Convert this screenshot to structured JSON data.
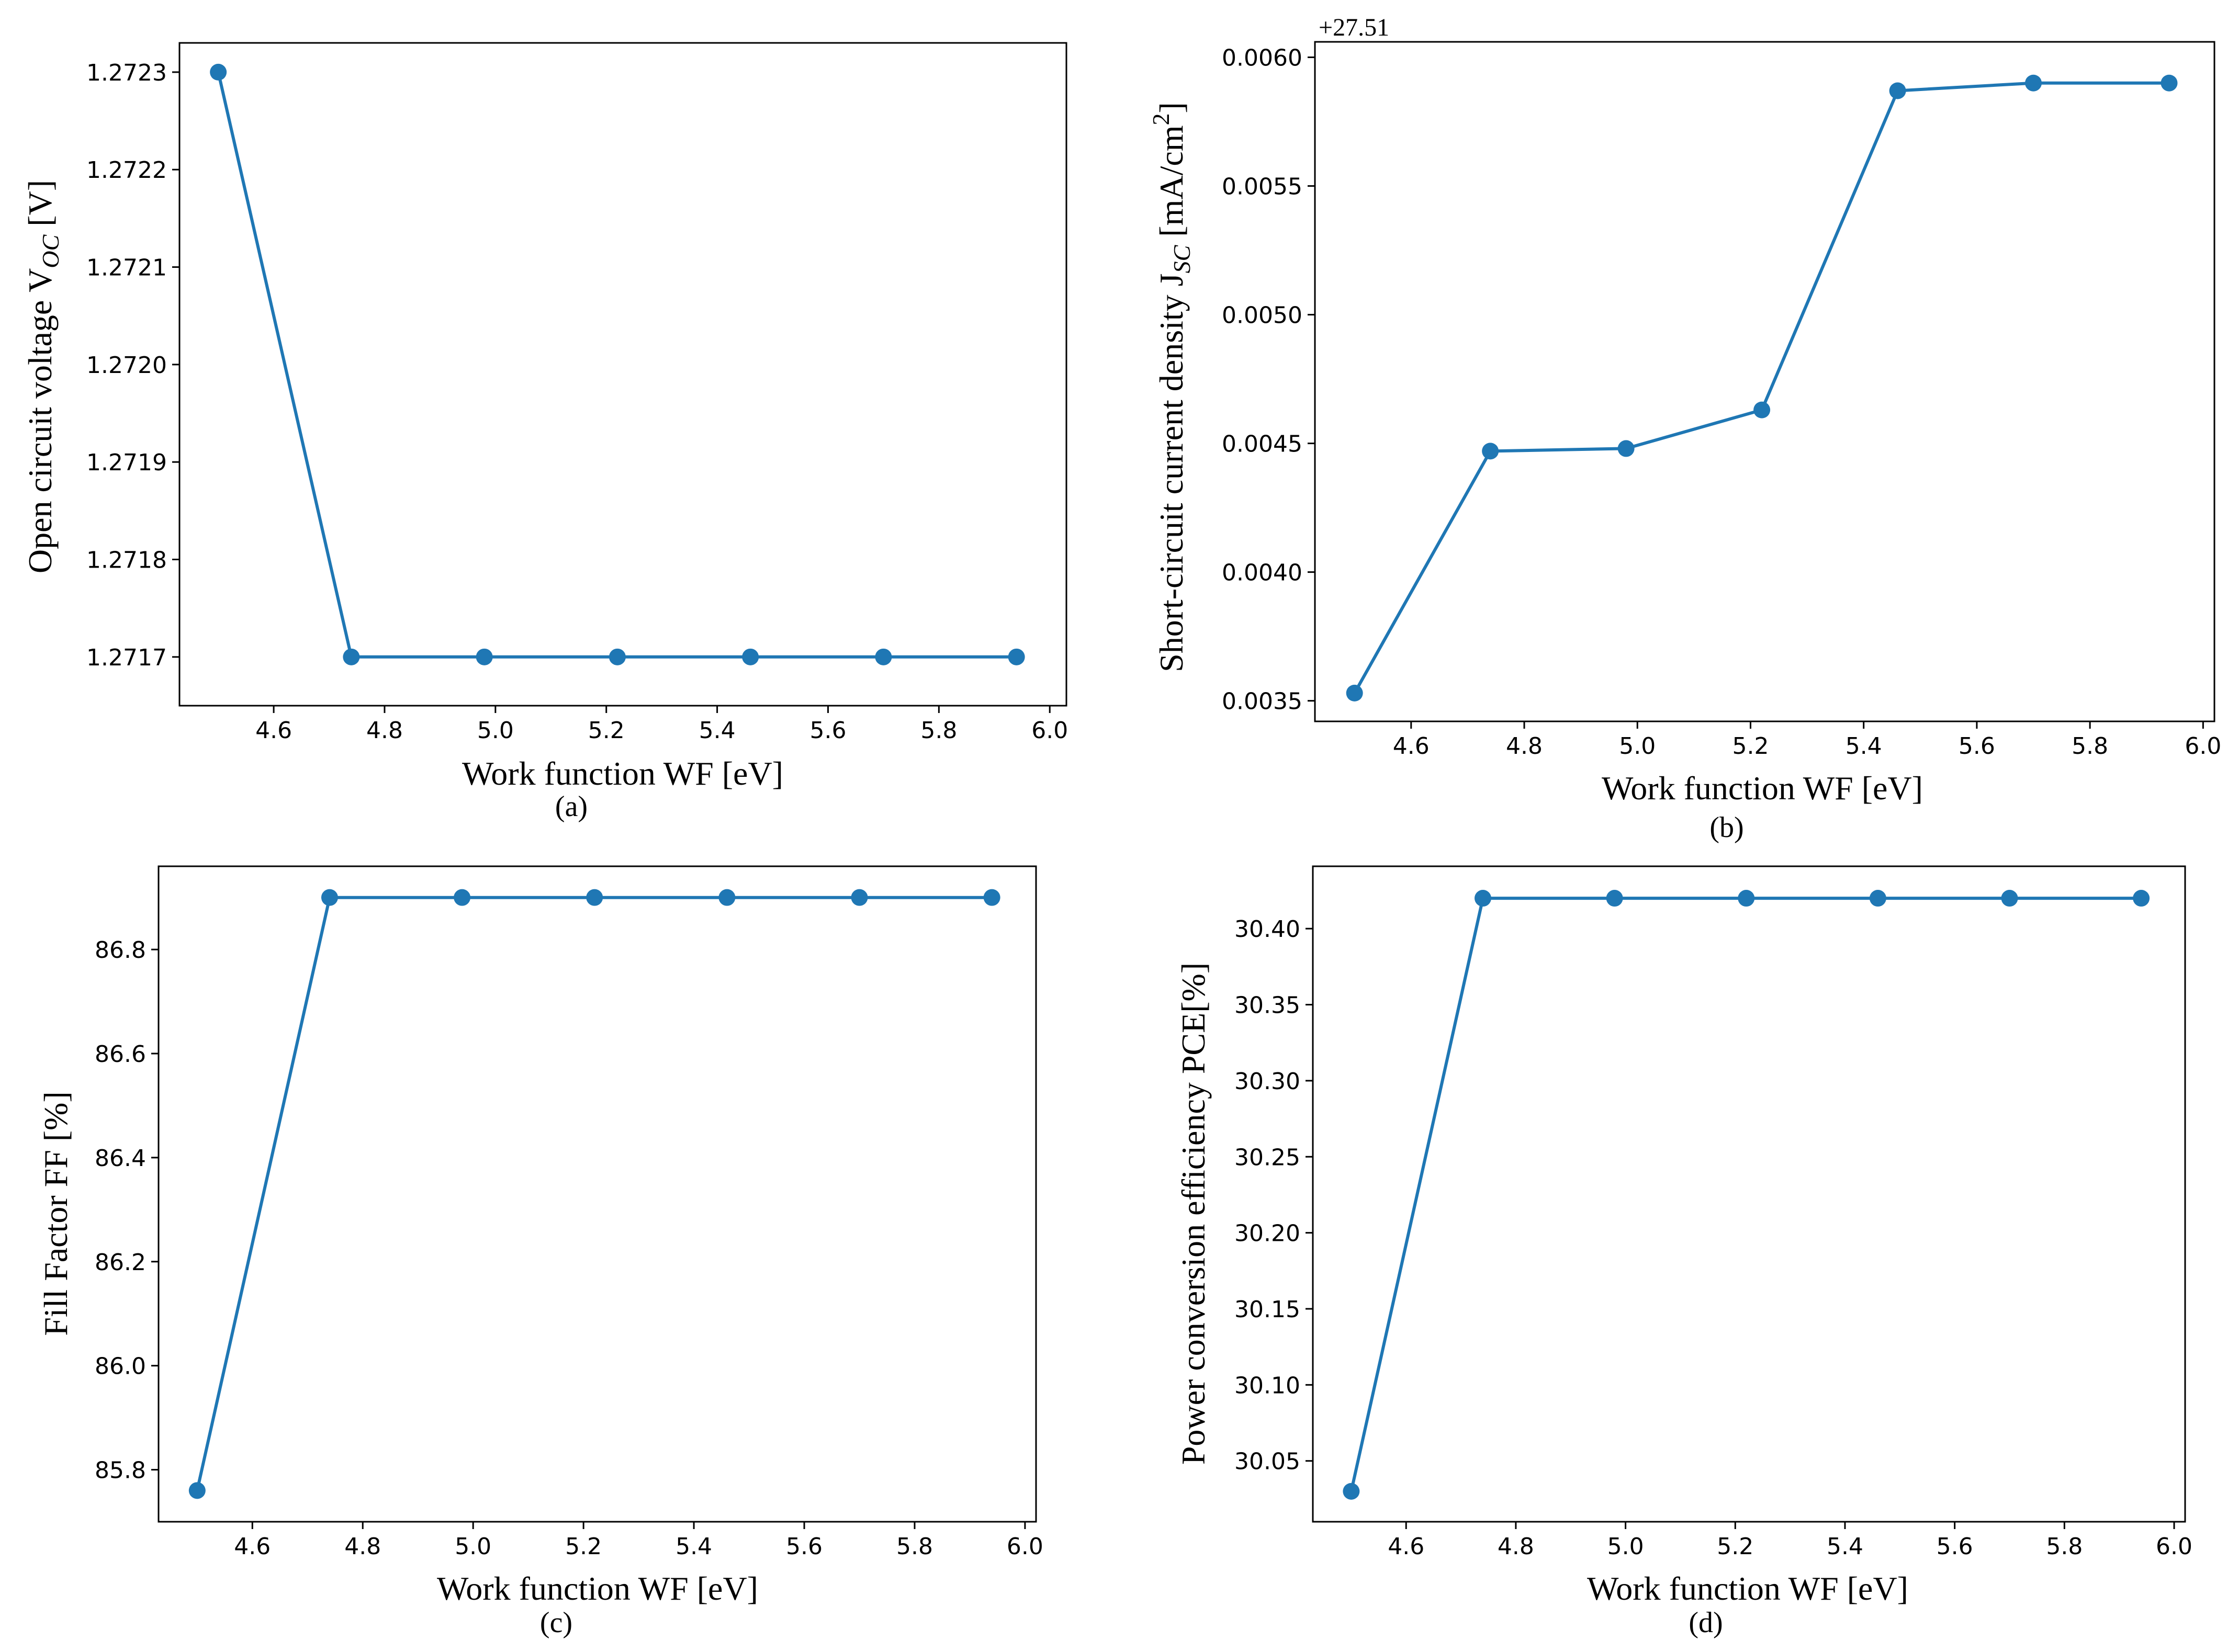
{
  "chart_data": [
    {
      "type": "line",
      "caption": "(a)",
      "xlabel": "Work function WF [eV]",
      "ylabel": "Open circuit voltage V",
      "ylabel_sub": "OC",
      "ylabel_tail": " [V]",
      "xlim": [
        4.43,
        6.03
      ],
      "ylim": [
        1.27165,
        1.27233
      ],
      "xticks": [
        "4.6",
        "4.8",
        "5.0",
        "5.2",
        "5.4",
        "5.6",
        "5.8",
        "6.0"
      ],
      "yticks": [
        "1.2717",
        "1.2718",
        "1.2719",
        "1.2720",
        "1.2721",
        "1.2722",
        "1.2723"
      ],
      "series": [
        {
          "name": "Voc",
          "color": "#1f77b4",
          "x": [
            4.5,
            4.74,
            4.98,
            5.22,
            5.46,
            5.7,
            5.94
          ],
          "y": [
            1.2723,
            1.2717,
            1.2717,
            1.2717,
            1.2717,
            1.2717,
            1.2717
          ]
        }
      ]
    },
    {
      "type": "line",
      "caption": "(b)",
      "offset_text": "+27.51",
      "xlabel": "Work function WF [eV]",
      "ylabel": "Short-circuit current density J",
      "ylabel_sub": "SC",
      "ylabel_tail": " [mA/cm",
      "ylabel_sup": "2",
      "ylabel_end": "]",
      "xlim": [
        4.43,
        6.02
      ],
      "ylim": [
        0.00342,
        0.00606
      ],
      "xticks": [
        "4.6",
        "4.8",
        "5.0",
        "5.2",
        "5.4",
        "5.6",
        "5.8",
        "6.0"
      ],
      "yticks": [
        "0.0035",
        "0.0040",
        "0.0045",
        "0.0050",
        "0.0055",
        "0.0060"
      ],
      "series": [
        {
          "name": "Jsc",
          "color": "#1f77b4",
          "x": [
            4.5,
            4.74,
            4.98,
            5.22,
            5.46,
            5.7,
            5.94
          ],
          "y": [
            0.00353,
            0.00447,
            0.00448,
            0.00463,
            0.00587,
            0.0059,
            0.0059
          ]
        }
      ]
    },
    {
      "type": "line",
      "caption": "(c)",
      "xlabel": "Work function WF [eV]",
      "ylabel": "Fill Factor FF [%]",
      "xlim": [
        4.43,
        6.02
      ],
      "ylim": [
        85.7,
        86.96
      ],
      "xticks": [
        "4.6",
        "4.8",
        "5.0",
        "5.2",
        "5.4",
        "5.6",
        "5.8",
        "6.0"
      ],
      "yticks": [
        "85.8",
        "86.0",
        "86.2",
        "86.4",
        "86.6",
        "86.8"
      ],
      "series": [
        {
          "name": "FF",
          "color": "#1f77b4",
          "x": [
            4.5,
            4.74,
            4.98,
            5.22,
            5.46,
            5.7,
            5.94
          ],
          "y": [
            85.76,
            86.9,
            86.9,
            86.9,
            86.9,
            86.9,
            86.9
          ]
        }
      ]
    },
    {
      "type": "line",
      "caption": "(d)",
      "xlabel": "Work function WF [eV]",
      "ylabel": "Power conversion efficiency PCE[%]",
      "xlim": [
        4.43,
        6.02
      ],
      "ylim": [
        30.01,
        30.441
      ],
      "xticks": [
        "4.6",
        "4.8",
        "5.0",
        "5.2",
        "5.4",
        "5.6",
        "5.8",
        "6.0"
      ],
      "yticks": [
        "30.05",
        "30.10",
        "30.15",
        "30.20",
        "30.25",
        "30.30",
        "30.35",
        "30.40"
      ],
      "series": [
        {
          "name": "PCE",
          "color": "#1f77b4",
          "x": [
            4.5,
            4.74,
            4.98,
            5.22,
            5.46,
            5.7,
            5.94
          ],
          "y": [
            30.03,
            30.42,
            30.42,
            30.42,
            30.42,
            30.42,
            30.42
          ]
        }
      ]
    }
  ]
}
